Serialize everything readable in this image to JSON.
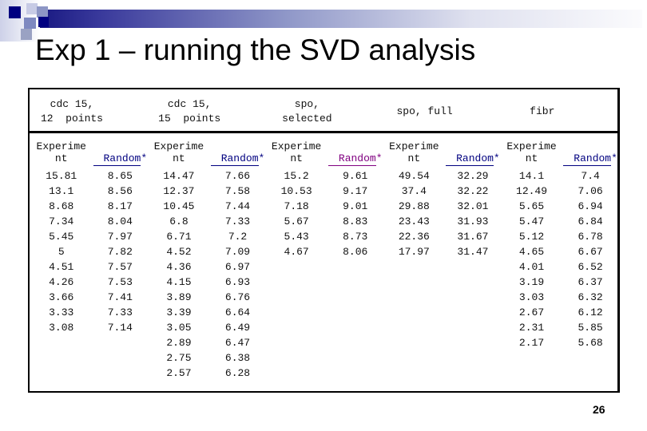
{
  "slide": {
    "title": "Exp 1 – running the SVD analysis",
    "page_number": "26"
  },
  "colors": {
    "navy": "#000080",
    "link_navy": "#000080",
    "link_purple": "#800080",
    "bar_gradient_start": "#13137d",
    "bar_gradient_end": "#fbfbfd"
  },
  "table": {
    "subheader": {
      "experiment_line1": "Experime",
      "experiment_line2": "nt",
      "random": "Random",
      "random_suffix": "*"
    },
    "groups": [
      {
        "id": "cdc15-12-points",
        "header_lines": [
          "cdc 15,",
          "12  points"
        ],
        "random_color": "#000080",
        "experiment": [
          "15.81",
          "13.1",
          "8.68",
          "7.34",
          "5.45",
          "5",
          "4.51",
          "4.26",
          "3.66",
          "3.33",
          "3.08"
        ],
        "random": [
          "8.65",
          "8.56",
          "8.17",
          "8.04",
          "7.97",
          "7.82",
          "7.57",
          "7.53",
          "7.41",
          "7.33",
          "7.14"
        ]
      },
      {
        "id": "cdc15-15-points",
        "header_lines": [
          "cdc 15,",
          "15  points"
        ],
        "random_color": "#000080",
        "experiment": [
          "14.47",
          "12.37",
          "10.45",
          "6.8",
          "6.71",
          "4.52",
          "4.36",
          "4.15",
          "3.89",
          "3.39",
          "3.05",
          "2.89",
          "2.75",
          "2.57"
        ],
        "random": [
          "7.66",
          "7.58",
          "7.44",
          "7.33",
          "7.2",
          "7.09",
          "6.97",
          "6.93",
          "6.76",
          "6.64",
          "6.49",
          "6.47",
          "6.38",
          "6.28"
        ]
      },
      {
        "id": "spo-selected",
        "header_lines": [
          "spo,",
          "selected"
        ],
        "random_color": "#800080",
        "experiment": [
          "15.2",
          "10.53",
          "7.18",
          "5.67",
          "5.43",
          "4.67"
        ],
        "random": [
          "9.61",
          "9.17",
          "9.01",
          "8.83",
          "8.73",
          "8.06"
        ]
      },
      {
        "id": "spo-full",
        "header_lines": [
          "spo, full"
        ],
        "random_color": "#000080",
        "experiment": [
          "49.54",
          "37.4",
          "29.88",
          "23.43",
          "22.36",
          "17.97"
        ],
        "random": [
          "32.29",
          "32.22",
          "32.01",
          "31.93",
          "31.67",
          "31.47"
        ]
      },
      {
        "id": "fibr",
        "header_lines": [
          "fibr"
        ],
        "random_color": "#000080",
        "experiment": [
          "14.1",
          "12.49",
          "5.65",
          "5.47",
          "5.12",
          "4.65",
          "4.01",
          "3.19",
          "3.03",
          "2.67",
          "2.31",
          "2.17"
        ],
        "random": [
          "7.4",
          "7.06",
          "6.94",
          "6.84",
          "6.78",
          "6.67",
          "6.52",
          "6.37",
          "6.32",
          "6.12",
          "5.85",
          "5.68"
        ]
      }
    ]
  }
}
